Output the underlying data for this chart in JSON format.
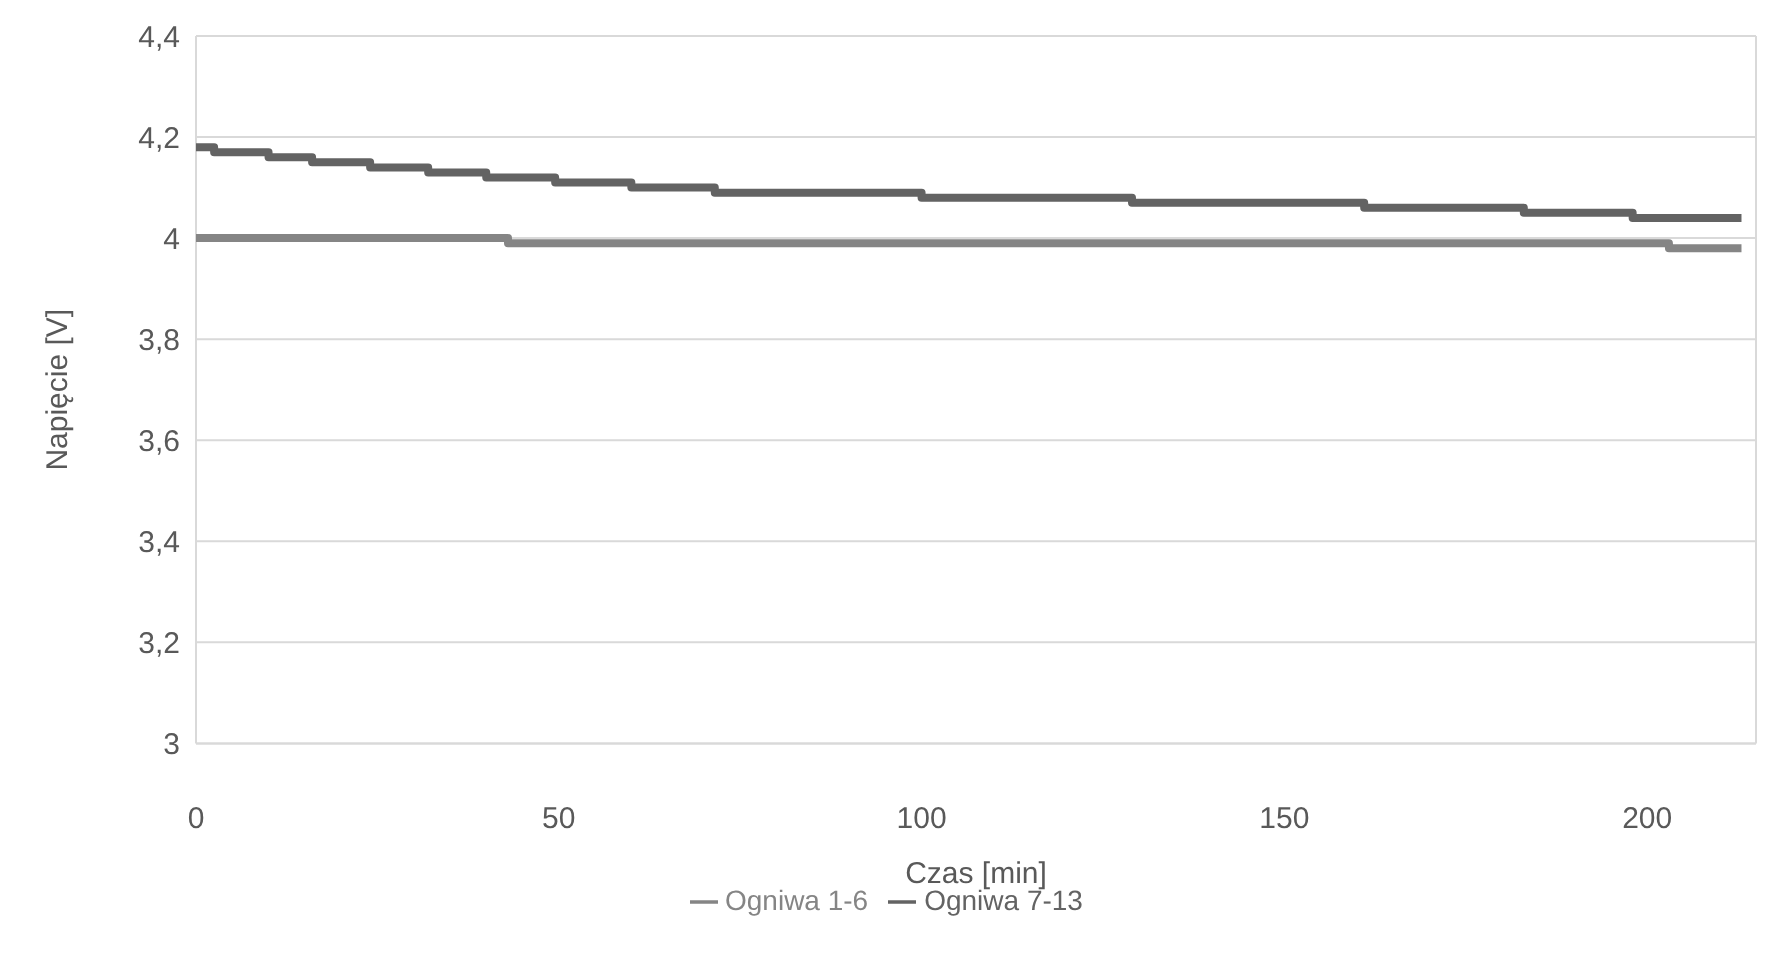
{
  "chart_data": {
    "type": "step",
    "xlabel": "Czas [min]",
    "ylabel": "Napięcie [V]",
    "xlim": [
      0,
      215
    ],
    "xticks": [
      0,
      50,
      100,
      150,
      200
    ],
    "ylim": [
      3,
      4.4
    ],
    "yticks": [
      3,
      {
        "value": 3.2,
        "label": "3,2"
      },
      {
        "value": 3.4,
        "label": "3,4"
      },
      {
        "value": 3.6,
        "label": "3,6"
      },
      {
        "value": 3.8,
        "label": "3,8"
      },
      4,
      {
        "value": 4.2,
        "label": "4,2"
      },
      {
        "value": 4.4,
        "label": "4,4"
      }
    ],
    "grid": true,
    "legend": "bottom",
    "marker": "none",
    "line_style": "solid",
    "series": [
      {
        "name": "Ogniwa 1-6",
        "color": "#858585",
        "x": [
          0,
          43,
          203,
          213
        ],
        "values": [
          4.0,
          3.99,
          3.98,
          3.98
        ]
      },
      {
        "name": "Ogniwa 7-13",
        "color": "#636363",
        "x": [
          0,
          2.5,
          10,
          16,
          24,
          32,
          40,
          49.5,
          60,
          71.5,
          100,
          129,
          161,
          183,
          198,
          213
        ],
        "values": [
          4.18,
          4.17,
          4.16,
          4.15,
          4.14,
          4.13,
          4.12,
          4.11,
          4.1,
          4.09,
          4.08,
          4.07,
          4.06,
          4.05,
          4.04,
          4.04
        ]
      }
    ]
  }
}
